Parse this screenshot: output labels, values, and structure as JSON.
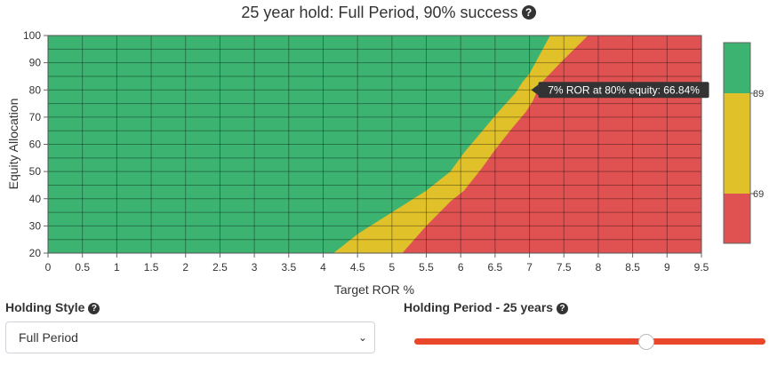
{
  "title": "25 year hold: Full Period, 90% success",
  "help_glyph": "?",
  "chart_data": {
    "type": "heatmap",
    "xlabel": "Target ROR %",
    "ylabel": "Equity Allocation",
    "xlim": [
      0,
      9.5
    ],
    "ylim": [
      20,
      100
    ],
    "x_ticks": [
      "0",
      "0.5",
      "1",
      "1.5",
      "2",
      "2.5",
      "3",
      "3.5",
      "4",
      "4.5",
      "5",
      "5.5",
      "6",
      "6.5",
      "7",
      "7.5",
      "8",
      "8.5",
      "9",
      "9.5"
    ],
    "y_ticks": [
      "20",
      "30",
      "40",
      "50",
      "60",
      "70",
      "80",
      "90",
      "100"
    ],
    "zones": [
      {
        "name": "green",
        "color": "#3cb371",
        "upper_boundary": [
          [
            4.15,
            20
          ],
          [
            4.5,
            27
          ],
          [
            5,
            35
          ],
          [
            5.5,
            43
          ],
          [
            5.85,
            50
          ],
          [
            6.05,
            57
          ],
          [
            6.25,
            63
          ],
          [
            6.55,
            72
          ],
          [
            6.8,
            79
          ],
          [
            6.9,
            83
          ],
          [
            7,
            86
          ],
          [
            7.15,
            93
          ],
          [
            7.3,
            100
          ]
        ]
      },
      {
        "name": "yellow",
        "color": "#e0c12a",
        "upper_boundary": [
          [
            5.15,
            20
          ],
          [
            5.5,
            30
          ],
          [
            5.85,
            39
          ],
          [
            6.05,
            43
          ],
          [
            6.3,
            51
          ],
          [
            6.5,
            58
          ],
          [
            6.75,
            66
          ],
          [
            6.95,
            72
          ],
          [
            7.05,
            76
          ],
          [
            7.15,
            82
          ],
          [
            7.45,
            90
          ],
          [
            7.85,
            100
          ]
        ]
      },
      {
        "name": "red",
        "color": "#e05252"
      }
    ],
    "tooltip": "7% ROR at 80% equity: 66.84%",
    "tooltip_point": [
      7,
      80
    ],
    "colorbar": {
      "colors": [
        "#3cb371",
        "#e0c12a",
        "#e05252"
      ],
      "labels": [
        "89",
        "69"
      ]
    },
    "grid": true
  },
  "controls": {
    "holding_style_label": "Holding Style",
    "holding_style_value": "Full Period",
    "holding_period_label": "Holding Period - 25 years",
    "holding_period_years": 25,
    "slider_fraction": 0.66
  }
}
